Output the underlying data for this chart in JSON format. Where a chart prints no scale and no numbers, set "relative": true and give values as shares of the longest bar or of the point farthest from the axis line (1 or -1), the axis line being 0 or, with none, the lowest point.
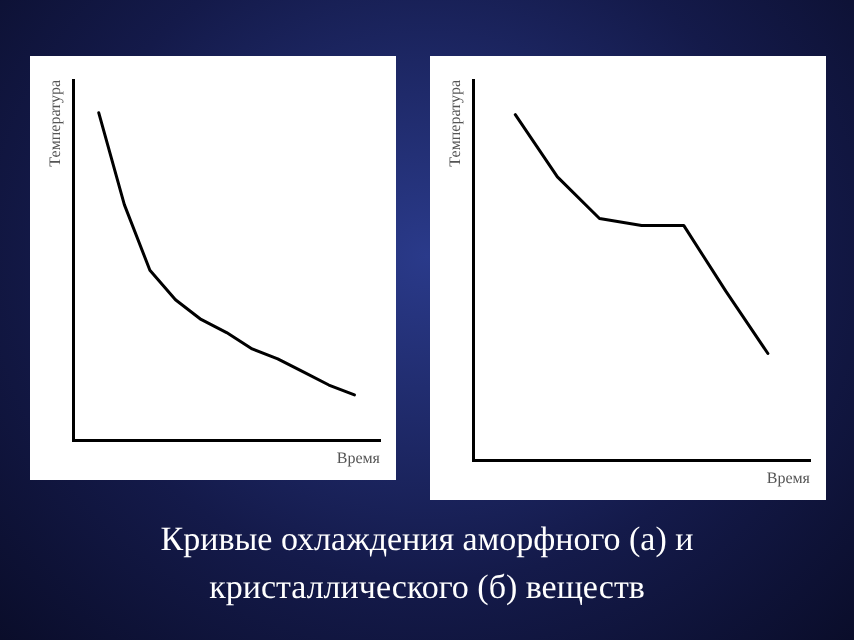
{
  "chart_data": [
    {
      "type": "line",
      "relative": true,
      "xlabel": "Время",
      "ylabel": "Температура",
      "color": "#000000",
      "categories": [
        null,
        null,
        null,
        null,
        null,
        null,
        null,
        null,
        null,
        null,
        null,
        null,
        null
      ],
      "values": [
        null,
        1.0,
        0.72,
        0.52,
        0.43,
        0.37,
        0.33,
        0.28,
        0.25,
        0.21,
        0.17,
        0.14,
        null
      ],
      "annotations": [
        "Кривые охлаждения аморфного (а) и кристаллического (б) веществ"
      ]
    },
    {
      "type": "line",
      "relative": true,
      "xlabel": "Время",
      "ylabel": "Температура",
      "color": "#000000",
      "categories": [
        null,
        null,
        null,
        null,
        null,
        null,
        null,
        null,
        null
      ],
      "values": [
        null,
        1.0,
        0.82,
        0.7,
        0.68,
        0.68,
        0.49,
        0.31,
        null
      ]
    }
  ]
}
